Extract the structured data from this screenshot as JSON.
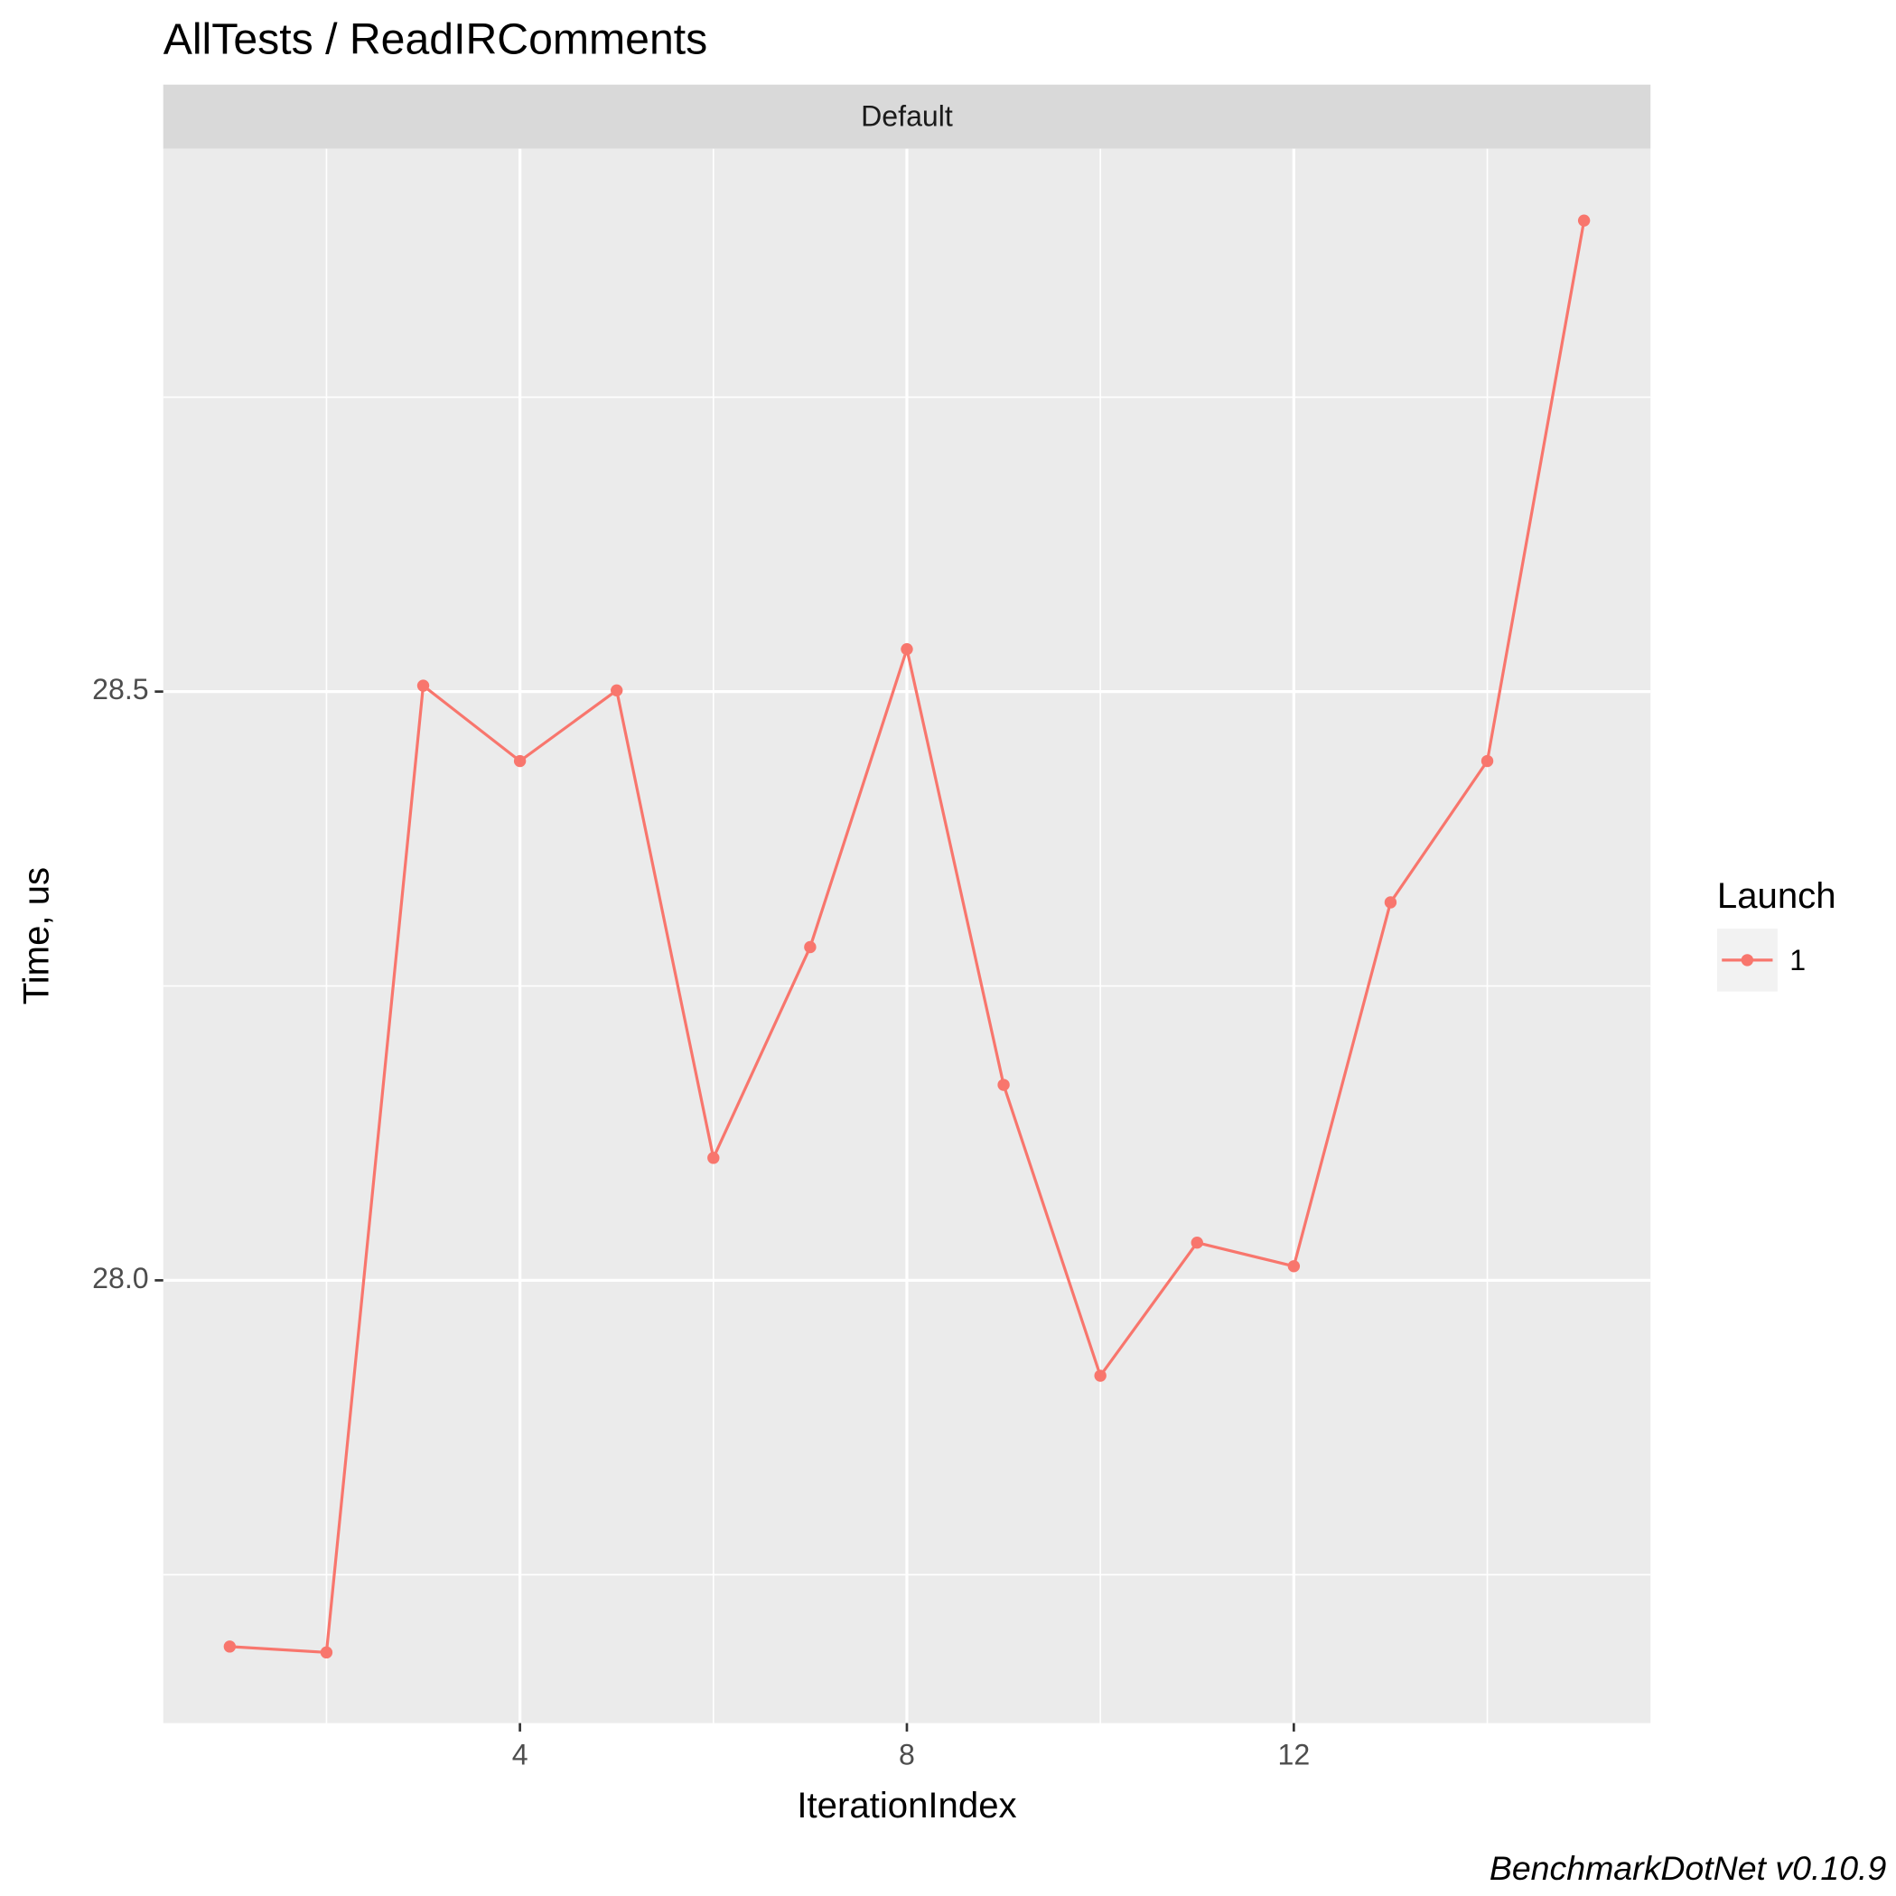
{
  "chart_data": {
    "type": "line",
    "title": "AllTests / ReadIRComments",
    "facet": "Default",
    "x_label": "IterationIndex",
    "y_label": "Time, us",
    "caption": "BenchmarkDotNet v0.10.9",
    "legend_title": "Launch",
    "legend_position": "right",
    "x": [
      1,
      2,
      3,
      4,
      5,
      6,
      7,
      8,
      9,
      10,
      11,
      12,
      13,
      14,
      15
    ],
    "series": [
      {
        "name": "1",
        "color": "#f8766d",
        "values": [
          27.689,
          27.684,
          28.505,
          28.441,
          28.501,
          28.104,
          28.283,
          28.536,
          28.166,
          27.919,
          28.032,
          28.012,
          28.321,
          28.441,
          28.9
        ]
      }
    ],
    "xlim": [
      0.3125,
      15.6875
    ],
    "xticks": [
      4,
      8,
      12
    ],
    "xminorticks": [
      2,
      6,
      10,
      14
    ],
    "ylim": [
      27.624,
      28.961
    ],
    "yticks": [
      {
        "value": 28,
        "label": "28.0"
      },
      28.5
    ],
    "yminorticks": [
      27.75,
      28.25,
      28.75
    ],
    "grid": true
  }
}
